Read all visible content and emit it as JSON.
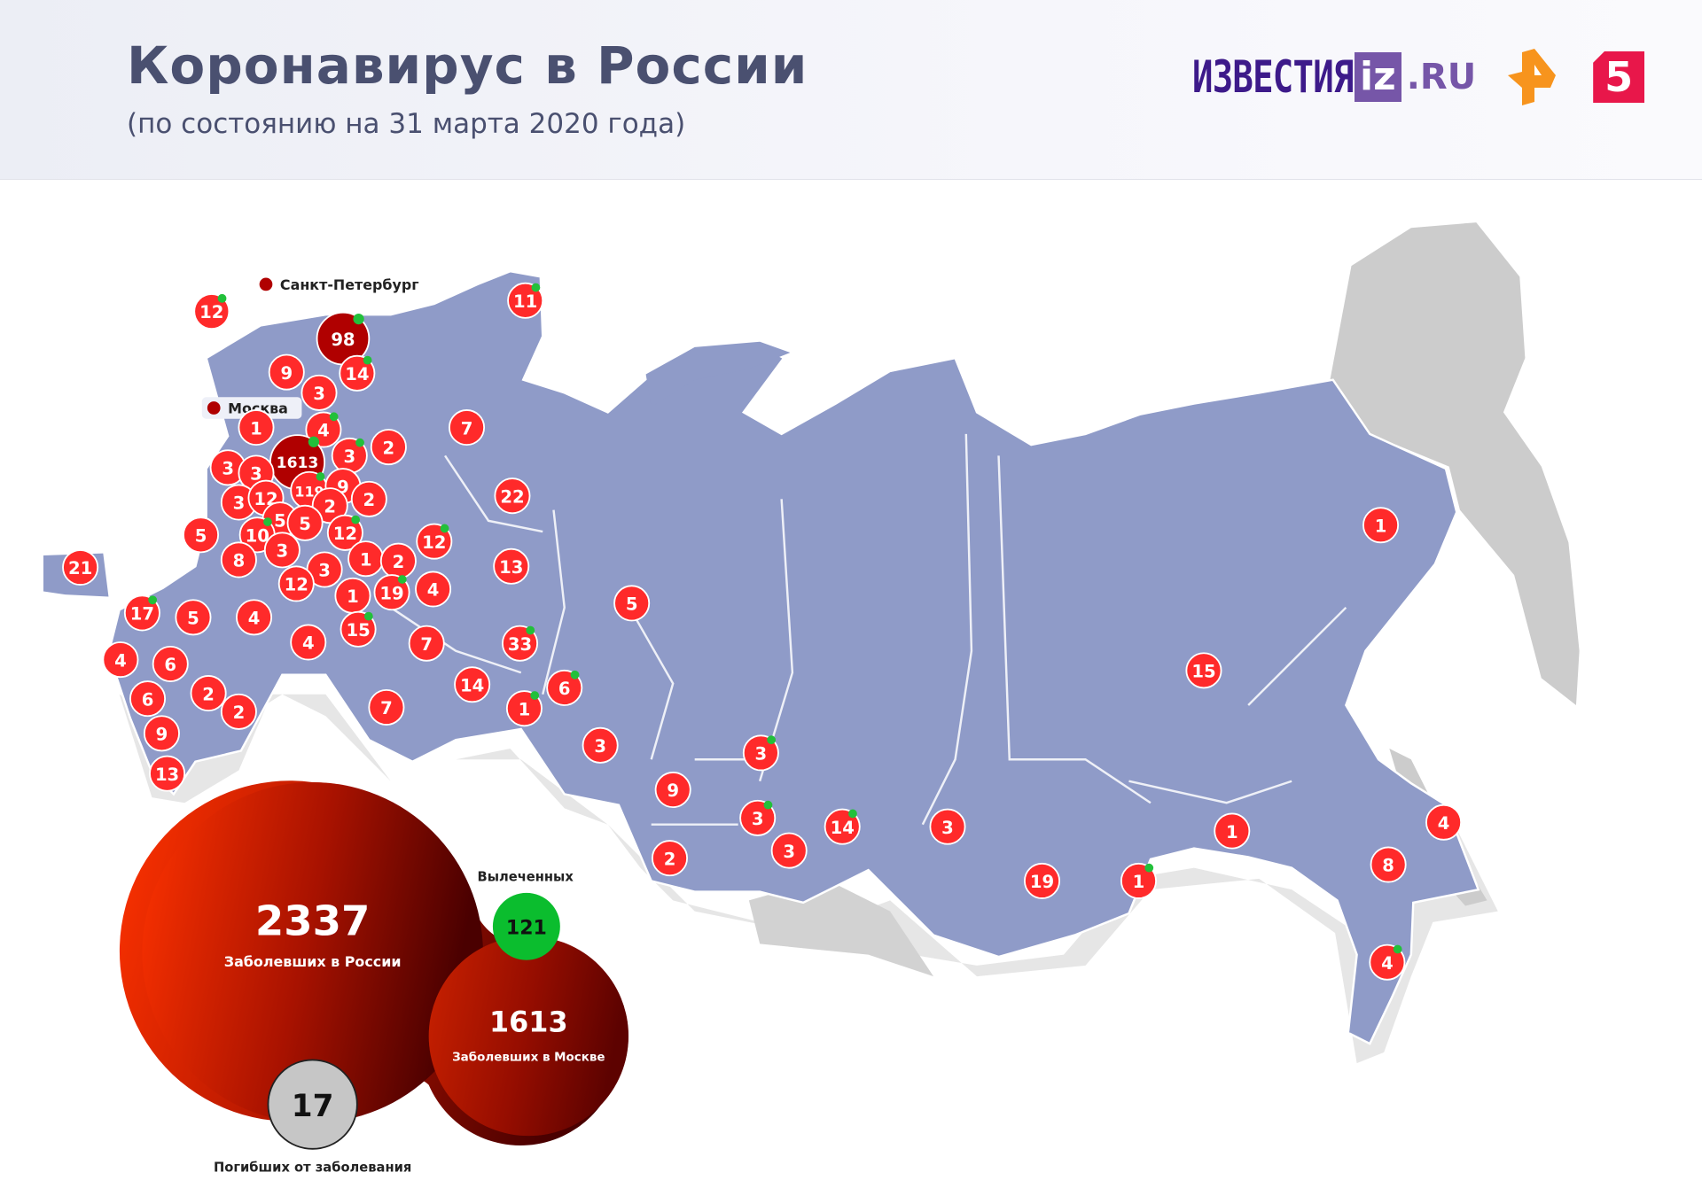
{
  "header": {
    "title": "Коронавирус в России",
    "subtitle": "(по состоянию на 31 марта 2020 года)",
    "logos": {
      "izvestia": "ИЗВЕСТИЯ",
      "iz": "iz",
      "ru": ".RU",
      "ren_tv": "ren-tv-logo",
      "channel5": "5"
    }
  },
  "colors": {
    "region": "#8f9bc8",
    "neighbor": "#cccccc",
    "marker": "#ff2a2a",
    "marker_major": "#b00000",
    "recovered": "#22c03a",
    "text": "#4a5070"
  },
  "legend": {
    "spb": "Санкт-Петербург",
    "moscow": "Москва"
  },
  "markers": [
    {
      "value": "12",
      "recovered": true
    },
    {
      "value": "98",
      "recovered": true,
      "major": true
    },
    {
      "value": "9"
    },
    {
      "value": "14",
      "recovered": true
    },
    {
      "value": "3"
    },
    {
      "value": "1"
    },
    {
      "value": "4",
      "recovered": true
    },
    {
      "value": "1613",
      "recovered": true,
      "major": true
    },
    {
      "value": "3",
      "recovered": true
    },
    {
      "value": "2"
    },
    {
      "value": "7"
    },
    {
      "value": "11",
      "recovered": true
    },
    {
      "value": "3"
    },
    {
      "value": "3"
    },
    {
      "value": "119",
      "recovered": true
    },
    {
      "value": "9"
    },
    {
      "value": "2"
    },
    {
      "value": "3"
    },
    {
      "value": "12"
    },
    {
      "value": "2"
    },
    {
      "value": "5"
    },
    {
      "value": "5"
    },
    {
      "value": "5"
    },
    {
      "value": "10",
      "recovered": true
    },
    {
      "value": "12",
      "recovered": true
    },
    {
      "value": "3"
    },
    {
      "value": "8"
    },
    {
      "value": "12",
      "recovered": true
    },
    {
      "value": "22"
    },
    {
      "value": "3"
    },
    {
      "value": "1"
    },
    {
      "value": "2"
    },
    {
      "value": "12"
    },
    {
      "value": "1"
    },
    {
      "value": "19",
      "recovered": true
    },
    {
      "value": "4"
    },
    {
      "value": "13"
    },
    {
      "value": "21"
    },
    {
      "value": "17",
      "recovered": true
    },
    {
      "value": "5"
    },
    {
      "value": "4"
    },
    {
      "value": "4"
    },
    {
      "value": "15",
      "recovered": true
    },
    {
      "value": "7"
    },
    {
      "value": "33",
      "recovered": true
    },
    {
      "value": "5"
    },
    {
      "value": "4"
    },
    {
      "value": "6"
    },
    {
      "value": "6"
    },
    {
      "value": "2"
    },
    {
      "value": "2"
    },
    {
      "value": "9"
    },
    {
      "value": "13"
    },
    {
      "value": "7"
    },
    {
      "value": "14"
    },
    {
      "value": "1",
      "recovered": true
    },
    {
      "value": "6",
      "recovered": true
    },
    {
      "value": "3"
    },
    {
      "value": "3",
      "recovered": true
    },
    {
      "value": "9"
    },
    {
      "value": "3",
      "recovered": true
    },
    {
      "value": "2"
    },
    {
      "value": "3"
    },
    {
      "value": "14",
      "recovered": true
    },
    {
      "value": "3"
    },
    {
      "value": "19"
    },
    {
      "value": "1",
      "recovered": true
    },
    {
      "value": "1"
    },
    {
      "value": "15"
    },
    {
      "value": "1"
    },
    {
      "value": "4"
    },
    {
      "value": "8"
    },
    {
      "value": "4",
      "recovered": true
    }
  ],
  "stats": {
    "russia_cases": "2337",
    "russia_label": "Заболевших в России",
    "moscow_cases": "1613",
    "moscow_label": "Заболевших в Москве",
    "recovered": "121",
    "recovered_label": "Вылеченных",
    "deaths": "17",
    "deaths_label": "Погибших от заболевания"
  }
}
